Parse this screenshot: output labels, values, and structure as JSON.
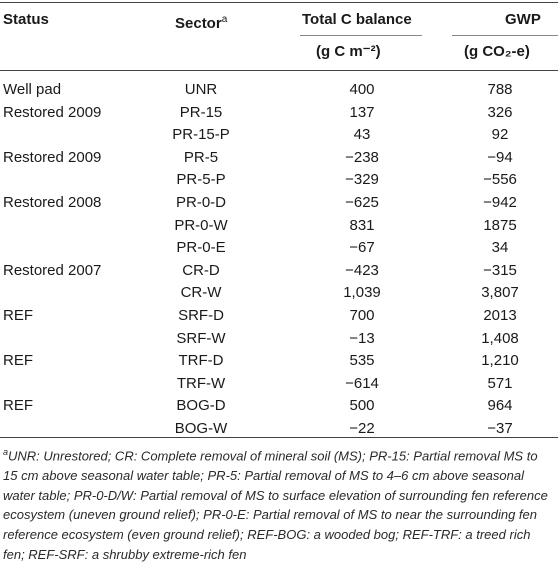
{
  "headers": {
    "status": "Status",
    "sector": "Sector",
    "sector_sup": "a",
    "total_c": "Total C balance",
    "gwp": "GWP",
    "total_c_unit": "(g C m⁻²)",
    "gwp_unit": "(g CO₂-e)"
  },
  "rows": [
    {
      "status": "Well pad",
      "sector": "UNR",
      "total_c": "400",
      "gwp": "788"
    },
    {
      "status": "Restored 2009",
      "sector": "PR-15",
      "total_c": "137",
      "gwp": "326"
    },
    {
      "status": "",
      "sector": "PR-15-P",
      "total_c": "43",
      "gwp": "92"
    },
    {
      "status": "Restored 2009",
      "sector": "PR-5",
      "total_c": "−238",
      "gwp": "−94"
    },
    {
      "status": "",
      "sector": "PR-5-P",
      "total_c": "−329",
      "gwp": "−556"
    },
    {
      "status": "Restored 2008",
      "sector": "PR-0-D",
      "total_c": "−625",
      "gwp": "−942"
    },
    {
      "status": "",
      "sector": "PR-0-W",
      "total_c": "831",
      "gwp": "1875"
    },
    {
      "status": "",
      "sector": "PR-0-E",
      "total_c": "−67",
      "gwp": "34"
    },
    {
      "status": "Restored 2007",
      "sector": "CR-D",
      "total_c": "−423",
      "gwp": "−315"
    },
    {
      "status": "",
      "sector": "CR-W",
      "total_c": "1,039",
      "gwp": "3,807"
    },
    {
      "status": "REF",
      "sector": "SRF-D",
      "total_c": "700",
      "gwp": "2013"
    },
    {
      "status": "",
      "sector": "SRF-W",
      "total_c": "−13",
      "gwp": "1,408"
    },
    {
      "status": "REF",
      "sector": "TRF-D",
      "total_c": "535",
      "gwp": "1,210"
    },
    {
      "status": "",
      "sector": "TRF-W",
      "total_c": "−614",
      "gwp": "571"
    },
    {
      "status": "REF",
      "sector": "BOG-D",
      "total_c": "500",
      "gwp": "964"
    },
    {
      "status": "",
      "sector": "BOG-W",
      "total_c": "−22",
      "gwp": "−37"
    }
  ],
  "footnote": {
    "marker": "a",
    "text": "UNR: Unrestored; CR: Complete removal of mineral soil (MS); PR-15: Partial removal MS to 15 cm above seasonal water table; PR-5: Partial removal of MS to 4–6 cm above seasonal water table; PR-0-D/W: Partial removal of MS to surface elevation of surrounding fen reference ecosystem (uneven ground relief); PR-0-E: Partial removal of MS to near the surrounding fen reference ecosystem (even ground relief); REF-BOG: a wooded bog; REF-TRF: a treed rich fen; REF-SRF: a shrubby extreme-rich fen"
  }
}
